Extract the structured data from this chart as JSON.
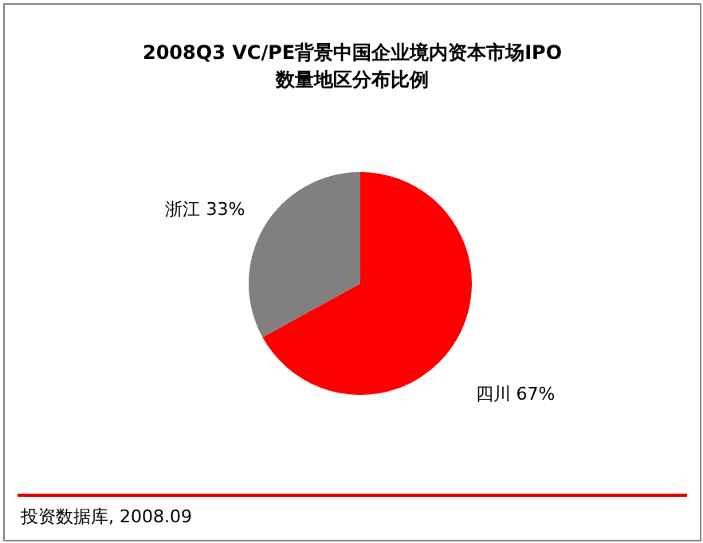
{
  "chart_data": {
    "type": "pie",
    "title": "2008Q3 VC/PE背景中国企业境内资本市场IPO\n数量地区分布比例",
    "categories": [
      "四川",
      "浙江"
    ],
    "values": [
      67,
      33
    ],
    "colors": [
      "#ff0000",
      "#808080"
    ],
    "value_labels": [
      "67%",
      "33%"
    ],
    "legend": false,
    "annotations": [
      "投资数据库, 2008.09"
    ]
  }
}
